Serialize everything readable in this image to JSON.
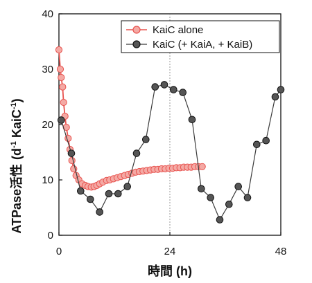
{
  "chart_data": {
    "type": "line",
    "xlabel": "時間 (h)",
    "ylabel_main": "ATPase活性",
    "ylabel_unit": "(d",
    "ylabel_unit_sup": "-1",
    "ylabel_unit_mid": " KaiC",
    "ylabel_unit_sup2": "-1",
    "ylabel_unit_end": ")",
    "xlim": [
      0,
      48
    ],
    "ylim": [
      0,
      40
    ],
    "xticks": [
      "0",
      "24",
      "48"
    ],
    "yticks": [
      "0",
      "10",
      "20",
      "30",
      "40"
    ],
    "reference_line_x": 24,
    "legend_position": "top-right",
    "series": [
      {
        "name": "KaiC alone",
        "color": "#e8534f",
        "fill": "#f4a9a4",
        "marker": "circle",
        "points": [
          [
            0.0,
            33.5
          ],
          [
            0.3,
            30.0
          ],
          [
            0.5,
            28.5
          ],
          [
            0.8,
            26.8
          ],
          [
            1.0,
            24.0
          ],
          [
            1.3,
            21.5
          ],
          [
            1.6,
            19.5
          ],
          [
            2.0,
            17.5
          ],
          [
            2.4,
            15.5
          ],
          [
            2.8,
            13.5
          ],
          [
            3.2,
            12.0
          ],
          [
            3.7,
            10.8
          ],
          [
            4.3,
            10.0
          ],
          [
            5.0,
            9.3
          ],
          [
            5.7,
            9.0
          ],
          [
            6.3,
            8.8
          ],
          [
            7.0,
            8.7
          ],
          [
            7.6,
            8.8
          ],
          [
            8.2,
            9.0
          ],
          [
            8.8,
            9.3
          ],
          [
            9.5,
            9.6
          ],
          [
            10.3,
            9.9
          ],
          [
            11.0,
            10.0
          ],
          [
            11.8,
            10.2
          ],
          [
            12.6,
            10.4
          ],
          [
            13.4,
            10.6
          ],
          [
            14.2,
            10.8
          ],
          [
            15.0,
            11.0
          ],
          [
            15.8,
            11.2
          ],
          [
            16.6,
            11.4
          ],
          [
            17.4,
            11.5
          ],
          [
            18.2,
            11.6
          ],
          [
            19.0,
            11.7
          ],
          [
            19.8,
            11.8
          ],
          [
            20.6,
            11.9
          ],
          [
            21.4,
            11.9
          ],
          [
            22.2,
            12.0
          ],
          [
            23.0,
            12.0
          ],
          [
            23.8,
            12.1
          ],
          [
            24.6,
            12.1
          ],
          [
            25.4,
            12.2
          ],
          [
            26.2,
            12.2
          ],
          [
            27.0,
            12.3
          ],
          [
            27.8,
            12.3
          ],
          [
            28.6,
            12.3
          ],
          [
            29.4,
            12.4
          ],
          [
            30.2,
            12.4
          ],
          [
            31.0,
            12.4
          ]
        ]
      },
      {
        "name": "KaiC (+ KaiA, + KaiB)",
        "color": "#3a3a3a",
        "fill": "#555555",
        "marker": "circle",
        "points": [
          [
            0.5,
            20.8
          ],
          [
            2.7,
            14.8
          ],
          [
            4.7,
            8.0
          ],
          [
            6.8,
            6.5
          ],
          [
            8.8,
            4.2
          ],
          [
            10.8,
            7.5
          ],
          [
            12.8,
            7.5
          ],
          [
            14.8,
            8.8
          ],
          [
            16.8,
            14.8
          ],
          [
            18.8,
            17.3
          ],
          [
            20.8,
            26.8
          ],
          [
            22.8,
            27.2
          ],
          [
            24.8,
            26.3
          ],
          [
            26.8,
            25.8
          ],
          [
            28.8,
            20.9
          ],
          [
            30.8,
            8.4
          ],
          [
            32.8,
            6.8
          ],
          [
            34.8,
            2.8
          ],
          [
            36.8,
            5.6
          ],
          [
            38.8,
            8.8
          ],
          [
            40.8,
            6.8
          ],
          [
            42.8,
            16.4
          ],
          [
            44.8,
            17.1
          ],
          [
            46.8,
            25.0
          ],
          [
            48.0,
            26.3
          ]
        ]
      }
    ]
  }
}
